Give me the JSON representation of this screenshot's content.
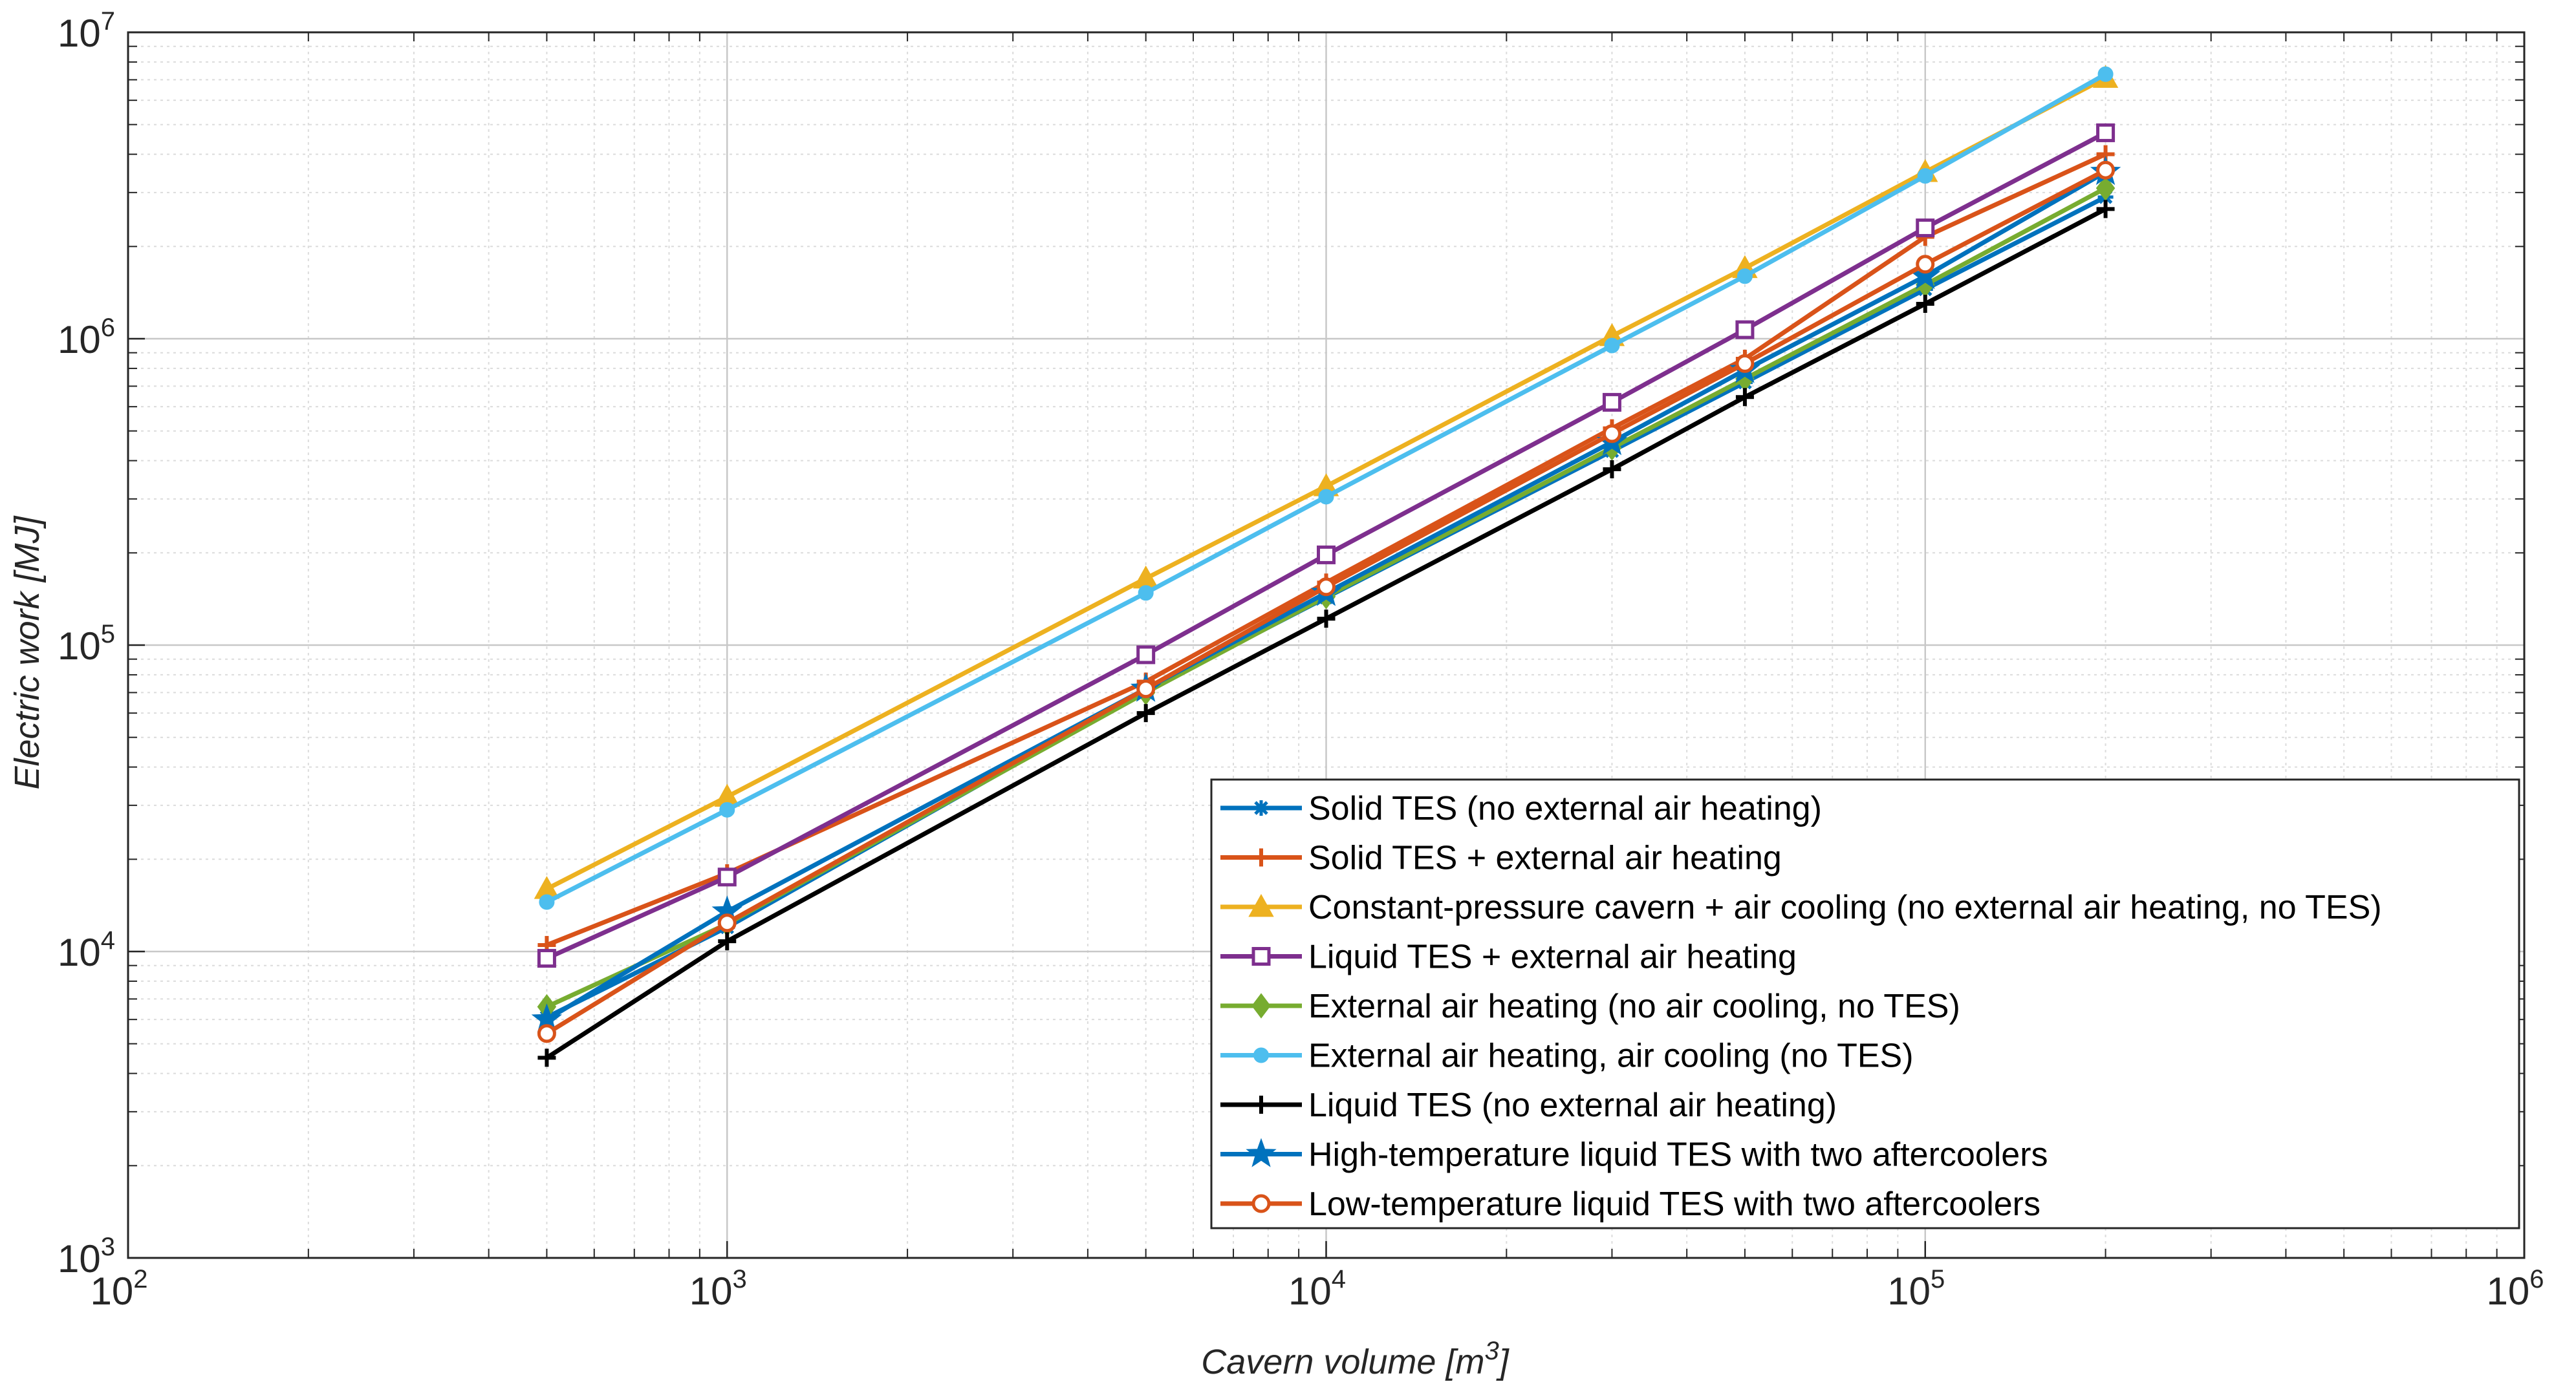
{
  "chart_data": {
    "type": "line",
    "x_scale": "log",
    "y_scale": "log",
    "xlim": [
      100,
      1000000
    ],
    "ylim": [
      1000,
      10000000
    ],
    "xlabel": {
      "prefix": "Cavern volume [m",
      "superscript": "3",
      "suffix": "]"
    },
    "ylabel": "Electric work [MJ]",
    "grid": true,
    "minor_grid": true,
    "legend_position": "bottom-right",
    "x_ticks": [
      {
        "base": "10",
        "exp": "2",
        "value": 100
      },
      {
        "base": "10",
        "exp": "3",
        "value": 1000
      },
      {
        "base": "10",
        "exp": "4",
        "value": 10000
      },
      {
        "base": "10",
        "exp": "5",
        "value": 100000
      },
      {
        "base": "10",
        "exp": "6",
        "value": 1000000
      }
    ],
    "y_ticks": [
      {
        "base": "10",
        "exp": "3",
        "value": 1000
      },
      {
        "base": "10",
        "exp": "4",
        "value": 10000
      },
      {
        "base": "10",
        "exp": "5",
        "value": 100000
      },
      {
        "base": "10",
        "exp": "6",
        "value": 1000000
      },
      {
        "base": "10",
        "exp": "7",
        "value": 10000000
      }
    ],
    "x": [
      500,
      1000,
      5000,
      10000,
      30000,
      50000,
      100000,
      200000
    ],
    "series": [
      {
        "name": "Solid TES (no external air heating)",
        "color": "#0072BD",
        "marker": "asterisk",
        "values": [
          6100,
          12000,
          71000,
          143000,
          430000,
          720000,
          1450000,
          2900000
        ]
      },
      {
        "name": "Solid TES + external air heating",
        "color": "#D95319",
        "marker": "plus",
        "values": [
          10500,
          18000,
          76000,
          160000,
          510000,
          860000,
          2150000,
          4000000
        ]
      },
      {
        "name": "Constant-pressure cavern + air cooling (no external air heating, no TES)",
        "color": "#EDB120",
        "marker": "triangle",
        "values": [
          16000,
          32000,
          165000,
          330000,
          1020000,
          1700000,
          3500000,
          7100000
        ]
      },
      {
        "name": "Liquid TES + external air heating",
        "color": "#7E2F8E",
        "marker": "square",
        "values": [
          9500,
          17500,
          93000,
          197000,
          620000,
          1070000,
          2300000,
          4700000
        ]
      },
      {
        "name": "External air heating (no air cooling, no TES)",
        "color": "#77AC30",
        "marker": "diamond",
        "values": [
          6600,
          12300,
          70000,
          144000,
          440000,
          740000,
          1500000,
          3100000
        ]
      },
      {
        "name": "External air heating, air cooling (no TES)",
        "color": "#4DBEEE",
        "marker": "circle-filled",
        "values": [
          14500,
          29000,
          148000,
          305000,
          950000,
          1600000,
          3400000,
          7300000
        ]
      },
      {
        "name": "Liquid TES (no external air heating)",
        "color": "#000000",
        "marker": "plus",
        "values": [
          4500,
          10800,
          60000,
          122000,
          375000,
          645000,
          1300000,
          2650000
        ]
      },
      {
        "name": "High-temperature liquid TES with two aftercoolers",
        "color": "#0072BD",
        "marker": "star",
        "values": [
          6000,
          13500,
          72000,
          148000,
          460000,
          790000,
          1600000,
          3500000
        ]
      },
      {
        "name": "Low-temperature liquid TES with two aftercoolers",
        "color": "#D95319",
        "marker": "circle-open",
        "values": [
          5400,
          12400,
          72000,
          155000,
          490000,
          830000,
          1750000,
          3550000
        ]
      }
    ]
  }
}
